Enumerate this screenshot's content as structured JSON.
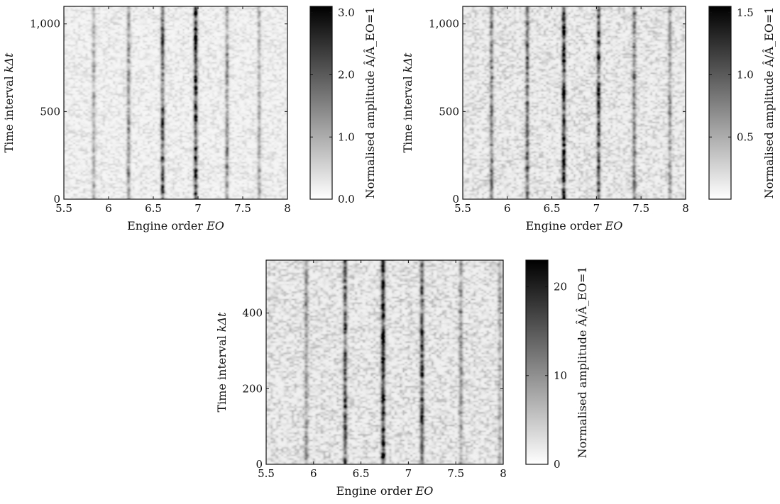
{
  "chart_data": [
    {
      "type": "heatmap",
      "xlabel": "Engine order EO",
      "ylabel": "Time interval kΔt",
      "colorbar_label": "Normalised amplitude Â/Â_EO=1",
      "xlim": [
        5.5,
        8
      ],
      "ylim": [
        0,
        1100
      ],
      "x_ticks": [
        5.5,
        6,
        6.5,
        7,
        7.5,
        8
      ],
      "x_tick_labels": [
        "5.5",
        "6",
        "6.5",
        "7",
        "7.5",
        "8"
      ],
      "y_ticks": [
        0,
        500,
        1000
      ],
      "y_tick_labels": [
        "0",
        "500",
        "1,000"
      ],
      "colorbar_range": [
        0,
        3.1
      ],
      "colorbar_ticks": [
        0,
        1,
        2,
        3
      ],
      "colorbar_tick_labels": [
        "0.0",
        "1.0",
        "2.0",
        "3.0"
      ],
      "colormap": [
        "#ffffff",
        "#000000"
      ],
      "grid": false,
      "ridges": [
        {
          "eo": 5.83,
          "amplitude": 0.9
        },
        {
          "eo": 6.22,
          "amplitude": 1.4
        },
        {
          "eo": 6.6,
          "amplitude": 2.3
        },
        {
          "eo": 6.97,
          "amplitude": 2.9
        },
        {
          "eo": 7.32,
          "amplitude": 1.3
        },
        {
          "eo": 7.68,
          "amplitude": 1.0
        }
      ],
      "background_level": 0.35
    },
    {
      "type": "heatmap",
      "xlabel": "Engine order EO",
      "ylabel": "Time interval kΔt",
      "colorbar_label": "Normalised amplitude Â/Â_EO=1",
      "xlim": [
        5.5,
        8
      ],
      "ylim": [
        0,
        1100
      ],
      "x_ticks": [
        5.5,
        6,
        6.5,
        7,
        7.5,
        8
      ],
      "x_tick_labels": [
        "5.5",
        "6",
        "6.5",
        "7",
        "7.5",
        "8"
      ],
      "y_ticks": [
        0,
        500,
        1000
      ],
      "y_tick_labels": [
        "0",
        "500",
        "1,000"
      ],
      "colorbar_range": [
        0,
        1.55
      ],
      "colorbar_ticks": [
        0.5,
        1.0,
        1.5
      ],
      "colorbar_tick_labels": [
        "0.5",
        "1.0",
        "1.5"
      ],
      "colormap": [
        "#ffffff",
        "#000000"
      ],
      "grid": false,
      "ridges": [
        {
          "eo": 5.82,
          "amplitude": 0.75
        },
        {
          "eo": 6.22,
          "amplitude": 0.9
        },
        {
          "eo": 6.63,
          "amplitude": 1.35
        },
        {
          "eo": 7.02,
          "amplitude": 1.2
        },
        {
          "eo": 7.42,
          "amplitude": 0.75
        },
        {
          "eo": 7.82,
          "amplitude": 0.55
        }
      ],
      "background_level": 0.25
    },
    {
      "type": "heatmap",
      "xlabel": "Engine order EO",
      "ylabel": "Time interval kΔt",
      "colorbar_label": "Normalised amplitude Â/Â_EO=1",
      "xlim": [
        5.5,
        8
      ],
      "ylim": [
        0,
        540
      ],
      "x_ticks": [
        5.5,
        6,
        6.5,
        7,
        7.5,
        8
      ],
      "x_tick_labels": [
        "5.5",
        "6",
        "6.5",
        "7",
        "7.5",
        "8"
      ],
      "y_ticks": [
        0,
        200,
        400
      ],
      "y_tick_labels": [
        "0",
        "200",
        "400"
      ],
      "colorbar_range": [
        0,
        23
      ],
      "colorbar_ticks": [
        0,
        10,
        20
      ],
      "colorbar_tick_labels": [
        "0",
        "10",
        "20"
      ],
      "colormap": [
        "#ffffff",
        "#000000"
      ],
      "grid": false,
      "ridges": [
        {
          "eo": 5.92,
          "amplitude": 8
        },
        {
          "eo": 6.33,
          "amplitude": 16
        },
        {
          "eo": 6.73,
          "amplitude": 21
        },
        {
          "eo": 7.14,
          "amplitude": 17
        },
        {
          "eo": 7.55,
          "amplitude": 8
        },
        {
          "eo": 7.96,
          "amplitude": 6
        }
      ],
      "background_level": 4
    }
  ]
}
